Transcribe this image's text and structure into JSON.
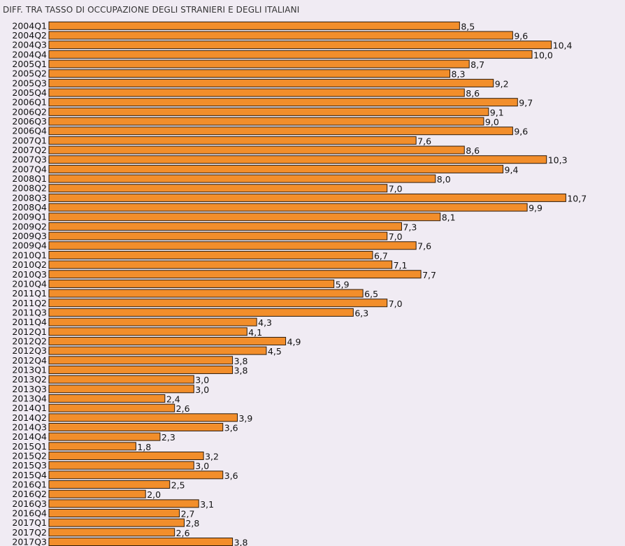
{
  "chart_data": {
    "type": "bar",
    "orientation": "horizontal",
    "title": "DIFF. TRA TASSO DI OCCUPAZIONE DEGLI STRANIERI E DEGLI ITALIANI",
    "bar_color": "#f28e2b",
    "background_color": "#f0ebf3",
    "categories": [
      "2004Q1",
      "2004Q2",
      "2004Q3",
      "2004Q4",
      "2005Q1",
      "2005Q2",
      "2005Q3",
      "2005Q4",
      "2006Q1",
      "2006Q2",
      "2006Q3",
      "2006Q4",
      "2007Q1",
      "2007Q2",
      "2007Q3",
      "2007Q4",
      "2008Q1",
      "2008Q2",
      "2008Q3",
      "2008Q4",
      "2009Q1",
      "2009Q2",
      "2009Q3",
      "2009Q4",
      "2010Q1",
      "2010Q2",
      "2010Q3",
      "2010Q4",
      "2011Q1",
      "2011Q2",
      "2011Q3",
      "2011Q4",
      "2012Q1",
      "2012Q2",
      "2012Q3",
      "2012Q4",
      "2013Q1",
      "2013Q2",
      "2013Q3",
      "2013Q4",
      "2014Q1",
      "2014Q2",
      "2014Q3",
      "2014Q4",
      "2015Q1",
      "2015Q2",
      "2015Q3",
      "2015Q4",
      "2016Q1",
      "2016Q2",
      "2016Q3",
      "2016Q4",
      "2017Q1",
      "2017Q2",
      "2017Q3"
    ],
    "values": [
      8.5,
      9.6,
      10.4,
      10.0,
      8.7,
      8.3,
      9.2,
      8.6,
      9.7,
      9.1,
      9.0,
      9.6,
      7.6,
      8.6,
      10.3,
      9.4,
      8.0,
      7.0,
      10.7,
      9.9,
      8.1,
      7.3,
      7.0,
      7.6,
      6.7,
      7.1,
      7.7,
      5.9,
      6.5,
      7.0,
      6.3,
      4.3,
      4.1,
      4.9,
      4.5,
      3.8,
      3.8,
      3.0,
      3.0,
      2.4,
      2.6,
      3.9,
      3.6,
      2.3,
      1.8,
      3.2,
      3.0,
      3.6,
      2.5,
      2.0,
      3.1,
      2.7,
      2.8,
      2.6,
      3.8
    ],
    "value_labels": [
      "8,5",
      "9,6",
      "10,4",
      "10,0",
      "8,7",
      "8,3",
      "9,2",
      "8,6",
      "9,7",
      "9,1",
      "9,0",
      "9,6",
      "7,6",
      "8,6",
      "10,3",
      "9,4",
      "8,0",
      "7,0",
      "10,7",
      "9,9",
      "8,1",
      "7,3",
      "7,0",
      "7,6",
      "6,7",
      "7,1",
      "7,7",
      "5,9",
      "6,5",
      "7,0",
      "6,3",
      "4,3",
      "4,1",
      "4,9",
      "4,5",
      "3,8",
      "3,8",
      "3,0",
      "3,0",
      "2,4",
      "2,6",
      "3,9",
      "3,6",
      "2,3",
      "1,8",
      "3,2",
      "3,0",
      "3,6",
      "2,5",
      "2,0",
      "3,1",
      "2,7",
      "2,8",
      "2,6",
      "3,8"
    ],
    "xlim": [
      0,
      10.7
    ],
    "grid": false,
    "legend": "none"
  }
}
